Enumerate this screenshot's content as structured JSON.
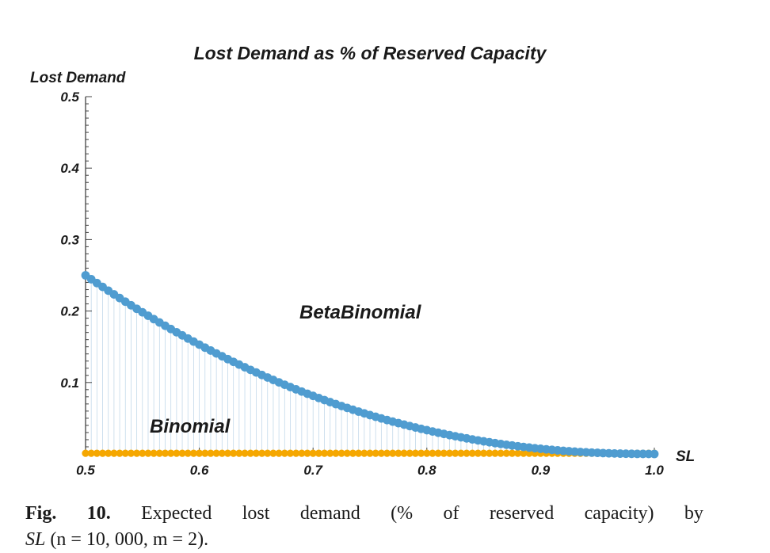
{
  "chart_data": {
    "type": "scatter",
    "title": "Lost Demand as % of Reserved Capacity",
    "xlabel": "SL",
    "ylabel": "Lost Demand",
    "xlim": [
      0.5,
      1.0
    ],
    "ylim": [
      0,
      0.5
    ],
    "x_ticks": [
      "0.5",
      "0.6",
      "0.7",
      "0.8",
      "0.9",
      "1.0"
    ],
    "y_ticks": [
      "0.1",
      "0.2",
      "0.3",
      "0.4",
      "0.5"
    ],
    "grid": false,
    "fill_to_axis": true,
    "series": [
      {
        "name": "BetaBinomial",
        "color": "#4f9cd0",
        "x_start": 0.5,
        "x_end": 1.0,
        "x_step": 0.005,
        "y_at_start": 0.25,
        "decay_exponent": 2.2
      },
      {
        "name": "Binomial",
        "color": "#f5a700",
        "x_start": 0.5,
        "x_end": 1.0,
        "x_step": 0.005,
        "y_constant": 0.001
      }
    ]
  },
  "caption": {
    "words_line1": [
      "10.",
      "Expected",
      "lost",
      "demand",
      "(%",
      "of",
      "reserved",
      "capacity)",
      "by"
    ],
    "fig": "Fig.",
    "sl": "SL",
    "params": "(n = 10, 000, m = 2)."
  }
}
